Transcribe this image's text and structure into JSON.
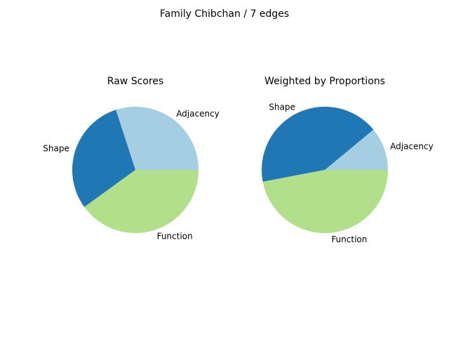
{
  "figure": {
    "suptitle": "Family Chibchan / 7 edges"
  },
  "chart_data": [
    {
      "type": "pie",
      "title": "Raw Scores",
      "labels": [
        "Adjacency",
        "Shape",
        "Function"
      ],
      "values": [
        0.3,
        0.3,
        0.4
      ],
      "colors": [
        "#a6cee3",
        "#1f78b4",
        "#b2df8a"
      ],
      "start_angle_deg": 0,
      "direction": "counterclockwise"
    },
    {
      "type": "pie",
      "title": "Weighted by Proportions",
      "labels": [
        "Adjacency",
        "Shape",
        "Function"
      ],
      "values": [
        0.11,
        0.42,
        0.47
      ],
      "colors": [
        "#a6cee3",
        "#1f78b4",
        "#b2df8a"
      ],
      "start_angle_deg": 0,
      "direction": "counterclockwise"
    }
  ]
}
